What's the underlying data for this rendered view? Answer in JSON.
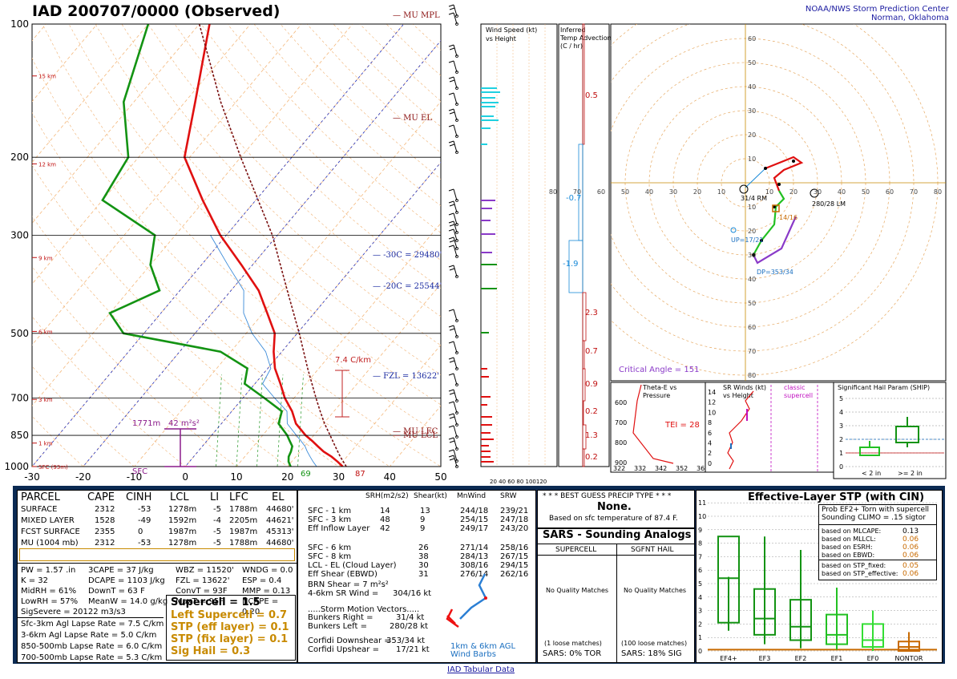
{
  "header": {
    "title": "IAD   200707/0000  (Observed)",
    "spc_line1": "NOAA/NWS Storm Prediction Center",
    "spc_line2": "Norman, Oklahoma"
  },
  "skewt": {
    "pressure_labels": [
      "100",
      "200",
      "300",
      "500",
      "700",
      "850",
      "1000"
    ],
    "pressure_values": [
      100,
      200,
      300,
      500,
      700,
      850,
      1000
    ],
    "height_labels": [
      "15 km",
      "12 km",
      "9 km",
      "6 km",
      "3 km",
      "1 km",
      "SFC (93m)"
    ],
    "height_pressures": [
      131,
      207,
      337,
      495,
      705,
      885,
      1000
    ],
    "temp_labels": [
      "-30",
      "-20",
      "-10",
      "0",
      "10",
      "20",
      "30",
      "40",
      "50"
    ],
    "temp_values": [
      -30,
      -20,
      -10,
      0,
      10,
      20,
      30,
      40,
      50
    ],
    "annotations": {
      "mu_mpl": "MU MPL",
      "mu_el": "MU EL",
      "mu_lfc": "MU LFC",
      "mu_lcl": "MU LCL",
      "m30": "-30C = 29480'",
      "m20": "-20C = 25544'",
      "fzl": "FZL = 13622'",
      "lapse": "7.4 C/km",
      "eff_inflow_h": "1771m",
      "eff_inflow_srh": "42 m²s²",
      "sfc": "SFC",
      "sfc_td": "69",
      "sfc_t": "87"
    }
  },
  "chart_data": {
    "type": "line",
    "title": "IAD 200707/0000 (Observed)",
    "xlabel": "",
    "ylabel": "",
    "xlim": [
      -30,
      50
    ],
    "ylim": [
      1000,
      100
    ],
    "series": [
      {
        "name": "",
        "values": [
          [
            1000,
            30.8
          ],
          [
            975,
            29
          ],
          [
            950,
            27
          ],
          [
            925,
            24.6
          ],
          [
            900,
            22.6
          ],
          [
            875,
            20.6
          ],
          [
            850,
            18.4
          ],
          [
            800,
            14.6
          ],
          [
            750,
            11.8
          ],
          [
            700,
            8.2
          ],
          [
            650,
            5.0
          ],
          [
            600,
            1.4
          ],
          [
            550,
            -1.6
          ],
          [
            500,
            -4.4
          ],
          [
            450,
            -9.2
          ],
          [
            400,
            -14.6
          ],
          [
            350,
            -22.2
          ],
          [
            300,
            -31.2
          ],
          [
            250,
            -40.4
          ],
          [
            200,
            -51
          ],
          [
            150,
            -58
          ],
          [
            100,
            -68
          ]
        ]
      },
      {
        "name": "",
        "values": [
          [
            1000,
            20.6
          ],
          [
            975,
            19.4
          ],
          [
            950,
            18.6
          ],
          [
            925,
            18.2
          ],
          [
            900,
            17.6
          ],
          [
            875,
            16.2
          ],
          [
            850,
            14.8
          ],
          [
            800,
            11.2
          ],
          [
            750,
            9.8
          ],
          [
            700,
            4.2
          ],
          [
            650,
            -2
          ],
          [
            600,
            -4
          ],
          [
            550,
            -12
          ],
          [
            500,
            -34
          ],
          [
            450,
            -40
          ],
          [
            400,
            -34
          ],
          [
            350,
            -40
          ],
          [
            300,
            -44
          ],
          [
            250,
            -60
          ],
          [
            200,
            -62
          ],
          [
            150,
            -72
          ],
          [
            100,
            -80
          ]
        ]
      },
      {
        "name": "",
        "values": [
          [
            1000,
            31.5
          ],
          [
            950,
            28.7
          ],
          [
            900,
            26
          ],
          [
            850,
            23.2
          ],
          [
            800,
            20.2
          ],
          [
            750,
            17.3
          ],
          [
            700,
            14.3
          ],
          [
            600,
            7.8
          ],
          [
            500,
            0.4
          ],
          [
            400,
            -9
          ],
          [
            300,
            -21
          ],
          [
            200,
            -40
          ],
          [
            150,
            -53
          ],
          [
            100,
            -70
          ]
        ]
      }
    ]
  },
  "ship": {
    "title": "Significant Hail Param (SHIP)",
    "ticks": [
      "0",
      "1",
      "2",
      "3",
      "4",
      "5"
    ],
    "lt2": "< 2 in",
    "ge2": ">= 2 in"
  },
  "hodo": {
    "rings": [
      "10",
      "20",
      "30",
      "40",
      "50",
      "60",
      "70",
      "80"
    ],
    "crit": "Critical Angle = 151",
    "rm": "31/4 RM",
    "lm": "280/28 LM",
    "up": "UP=17/21",
    "dp": "DP=353/34",
    "p1416": "14/16"
  },
  "narrow": {
    "wind_title": "Wind Speed (kt)\nvs Height",
    "wind_x": "20 40 60 80 100120",
    "adv_title": "Inferred\nTemp Advection\n(C / hr)",
    "adv": [
      "0.5",
      "-0.7",
      "-1.9",
      "2.3",
      "0.7",
      "0.9",
      "0.2",
      "1.3",
      "0.2"
    ]
  },
  "small": {
    "thetae_title": "Theta-E vs\nPressure",
    "tei": "TEI = 28",
    "thetae_x": [
      "322",
      "332",
      "342",
      "352",
      "362"
    ],
    "thetae_y": [
      "600",
      "700",
      "800",
      "900"
    ],
    "srw_title": "SR Winds (kt)\nvs Height",
    "srw_y": [
      "14",
      "12",
      "10",
      "8",
      "6",
      "4",
      "2",
      "0"
    ],
    "classic": "classic\nsupercell"
  },
  "parcel": {
    "headers": [
      "PARCEL",
      "CAPE",
      "CINH",
      "LCL",
      "LI",
      "LFC",
      "EL"
    ],
    "rows": [
      [
        "SURFACE",
        "2312",
        "-53",
        "1278m",
        "-5",
        "1788m",
        "44680'"
      ],
      [
        "MIXED LAYER",
        "1528",
        "-49",
        "1592m",
        "-4",
        "2205m",
        "44621'"
      ],
      [
        "FCST SURFACE",
        "2355",
        "0",
        "1987m",
        "-5",
        "1987m",
        "45313'"
      ],
      [
        "MU   (1004 mb)",
        "2312",
        "-53",
        "1278m",
        "-5",
        "1788m",
        "44680'"
      ]
    ],
    "col1": [
      "PW = 1.57 .in",
      "K = 32",
      "MidRH = 61%",
      "LowRH = 57%",
      "SigSevere = 20122 m3/s3"
    ],
    "col2": [
      "3CAPE = 37 J/kg",
      "DCAPE = 1103 J/kg",
      "DownT = 63 F",
      "MeanW = 14.0 g/kg"
    ],
    "col3": [
      "WBZ = 11520'",
      "FZL = 13622'",
      "ConvT = 93F",
      "MaxT = 95F"
    ],
    "col4": [
      "WNDG = 0.0",
      "ESP = 0.4",
      "MMP = 0.13",
      "NCAPE = 0.20"
    ],
    "lapse": [
      "Sfc-3km Agl Lapse Rate = 7.5 C/km",
      "3-6km Agl Lapse Rate = 5.0 C/km",
      "850-500mb Lapse Rate = 6.0 C/km",
      "700-500mb Lapse Rate = 5.3 C/km"
    ],
    "sup": "Supercell = 1.5",
    "left": [
      "Left Supercell = 0.7",
      "STP (eff layer) = 0.1",
      "STP (fix layer) = 0.1",
      "Sig Hail = 0.3"
    ]
  },
  "kin": {
    "headers": [
      "SRH(m2/s2)",
      "Shear(kt)",
      "MnWind",
      "SRW"
    ],
    "rows": [
      [
        "SFC - 1 km",
        "14",
        "13",
        "244/18",
        "239/21"
      ],
      [
        "SFC - 3 km",
        "48",
        "9",
        "254/15",
        "247/18"
      ],
      [
        "Eff Inflow Layer",
        "42",
        "9",
        "249/17",
        "243/20"
      ],
      [
        "",
        "",
        " ",
        "",
        ""
      ],
      [
        "SFC - 6 km",
        "26",
        "271/14",
        "258/16",
        ""
      ],
      [
        "SFC - 8 km",
        "38",
        "284/13",
        "267/15",
        ""
      ],
      [
        "LCL - EL (Cloud Layer)",
        "30",
        "308/16",
        "294/15",
        ""
      ],
      [
        "Eff Shear (EBWD)",
        "31",
        "276/14",
        "262/16",
        ""
      ]
    ],
    "brn": "BRN Shear = 7 m²s²",
    "sr46": "4-6km SR Wind =",
    "sr46v": "304/16 kt",
    "smv": ".....Storm Motion Vectors.....",
    "br": "Bunkers Right =",
    "brv": "31/4 kt",
    "bl": "Bunkers Left =",
    "blv": "280/28 kt",
    "cd": "Corfidi Downshear =",
    "cdv": "353/34 kt",
    "cu": "Corfidi Upshear =",
    "cuv": "17/21 kt",
    "barb_lbl": "1km & 6km AGL\nWind Barbs"
  },
  "precip": {
    "title": "* * * BEST GUESS PRECIP TYPE * * *",
    "val": "None.",
    "sub": "Based on sfc temperature of 87.4 F."
  },
  "sars": {
    "title": "SARS - Sounding Analogs",
    "sup": "SUPERCELL",
    "hail": "SGFNT HAIL",
    "nq": "No Quality Matches",
    "lm1": "(1 loose matches)",
    "lm2": "(100 loose matches)",
    "tor": "SARS:  0% TOR",
    "sig": "SARS:  18% SIG"
  },
  "stp": {
    "title": "Effective-Layer STP (with CIN)",
    "yt": [
      "0",
      "1",
      "2",
      "3",
      "4",
      "5",
      "6",
      "7",
      "8",
      "9",
      "10",
      "11"
    ],
    "cats": [
      "EF4+",
      "EF3",
      "EF2",
      "EF1",
      "EF0",
      "NONTOR"
    ],
    "prob1": "Prob EF2+ Torn with supercell",
    "prob2": "Sounding CLIMO = .15 sigtor",
    "based": [
      [
        "based on MLCAPE:",
        "0.13"
      ],
      [
        "based on MLLCL:",
        "0.06"
      ],
      [
        "based on ESRH:",
        "0.06"
      ],
      [
        "based on EBWD:",
        "0.06"
      ],
      [
        "based on STP_fixed:",
        "0.05"
      ],
      [
        "based on STP_effective:",
        "0.06"
      ]
    ]
  },
  "footer": {
    "link": "IAD Tabular Data"
  }
}
